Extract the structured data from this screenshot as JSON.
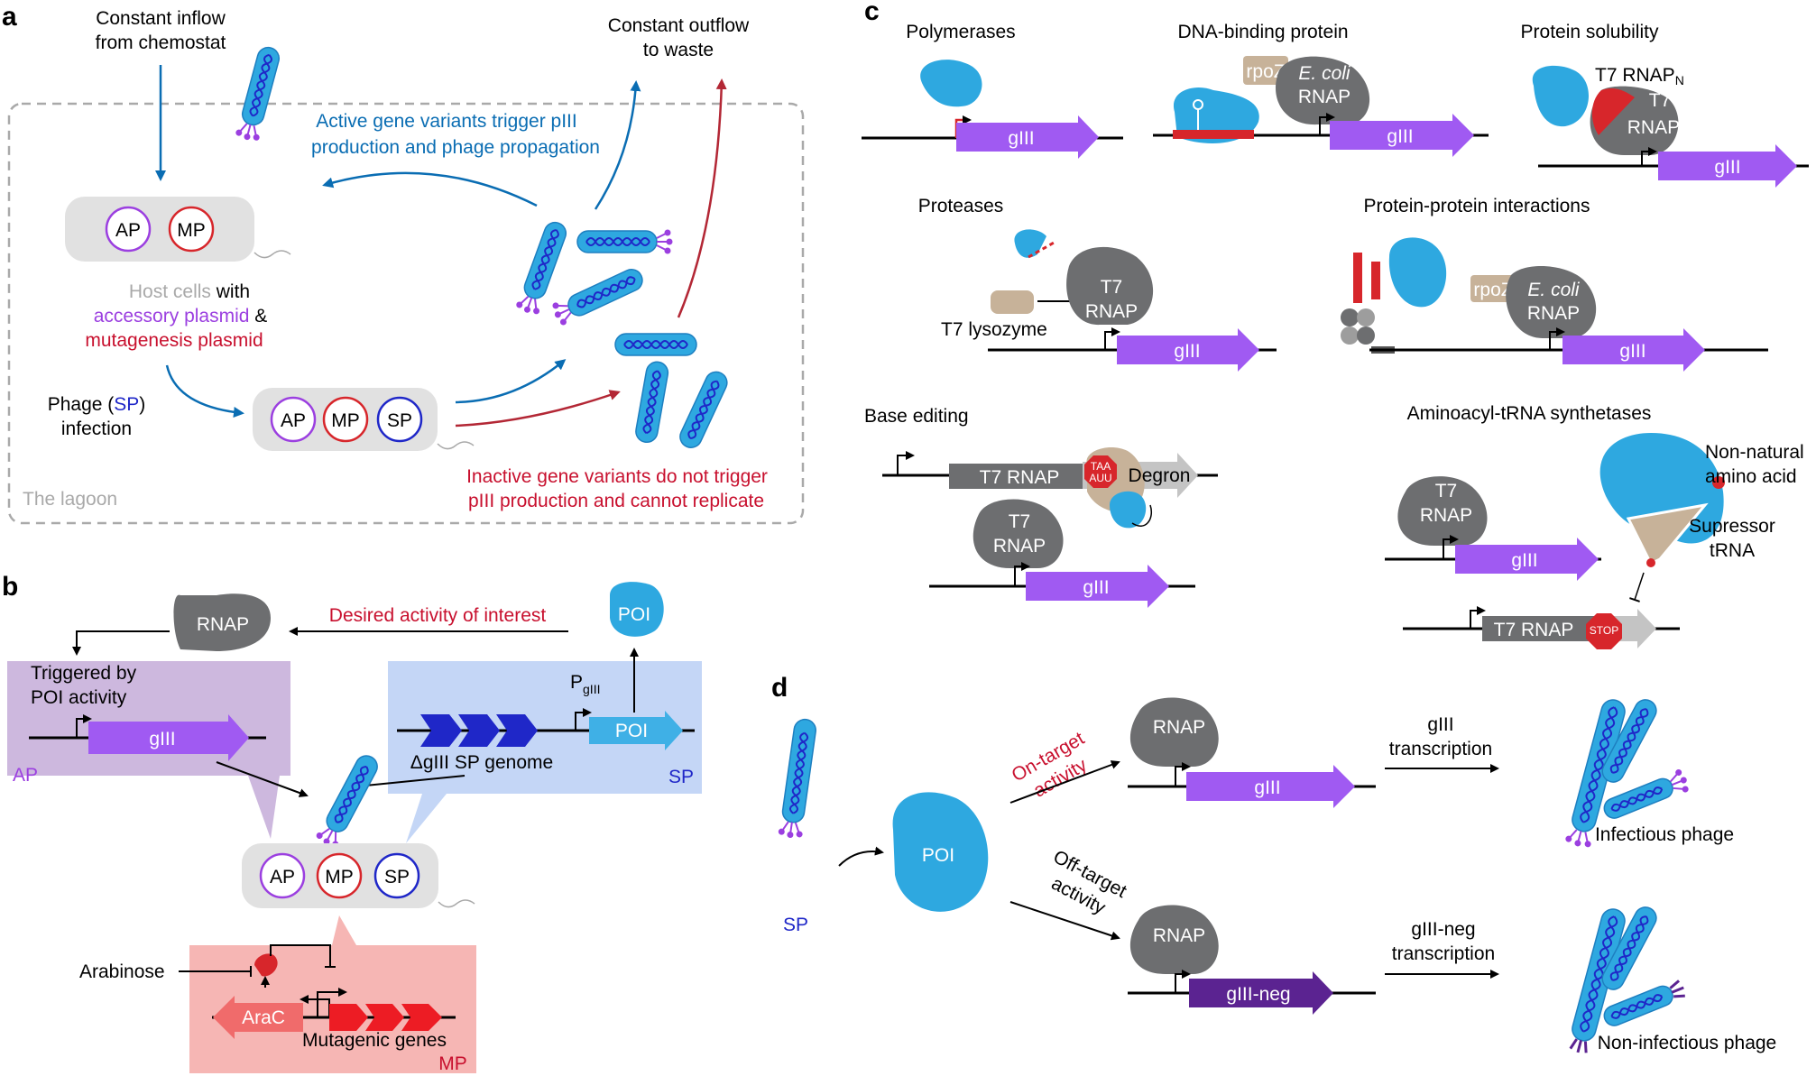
{
  "panels": {
    "a": "a",
    "b": "b",
    "c": "c",
    "d": "d"
  },
  "panel_a": {
    "inflow": [
      "Constant inflow",
      "from chemostat"
    ],
    "outflow": [
      "Constant outflow",
      "to waste"
    ],
    "active": [
      "Active gene variants trigger pIII",
      "production and phage propagation"
    ],
    "inactive": [
      "Inactive gene variants do not trigger",
      "pIII production and cannot replicate"
    ],
    "host_prefix": "Host cells",
    "host_with": " with",
    "accessory": "accessory plasmid",
    "amp": " &",
    "mutagenesis": "mutagenesis plasmid",
    "phage_infection": [
      "Phage (",
      "SP",
      ")",
      "infection"
    ],
    "lagoon": "The lagoon",
    "ap": "AP",
    "mp": "MP",
    "sp": "SP"
  },
  "panel_b": {
    "rnap": "RNAP",
    "desired": "Desired activity of interest",
    "poi": "POI",
    "triggered": [
      "Triggered by",
      "POI activity"
    ],
    "giii": "gIII",
    "ap_label": "AP",
    "p_letter": "P",
    "p_sub": "gIII",
    "poi_gene": "POI",
    "sp_genome": "ΔgIII SP genome",
    "sp_label": "SP",
    "ap": "AP",
    "mp": "MP",
    "sp": "SP",
    "arabinose": "Arabinose",
    "arac": "AraC",
    "mutagenic": "Mutagenic genes",
    "mp_label": "MP"
  },
  "panel_c": {
    "polymerases": "Polymerases",
    "dna_binding": "DNA-binding protein",
    "solubility": "Protein solubility",
    "proteases": "Proteases",
    "ppi": "Protein-protein interactions",
    "base_editing": "Base editing",
    "aars": "Aminoacyl-tRNA synthetases",
    "giii": "gIII",
    "rpoz": "rpoZ",
    "ecoli": "E. coli",
    "rnap": "RNAP",
    "t7": "T7",
    "t7_rnap": "T7 RNAP",
    "t7_rnap_n_main": "T7 RNAP",
    "t7_rnap_n_sub": "N",
    "rnap_c_main": "RNAP",
    "rnap_c_sub": "C",
    "t7_lysozyme": "T7 lysozyme",
    "degron": "Degron",
    "taa": "TAA",
    "auu": "AUU",
    "stop": "STOP",
    "non_natural": [
      "Non-natural",
      "amino acid"
    ],
    "supressor": [
      "Supressor",
      "tRNA"
    ]
  },
  "panel_d": {
    "sp": "SP",
    "poi": "POI",
    "on_target": [
      "On-target",
      "activity"
    ],
    "off_target": [
      "Off-target",
      "activity"
    ],
    "rnap": "RNAP",
    "giii": "gIII",
    "giii_neg": "gIII-neg",
    "giii_tx": [
      "gIII",
      "transcription"
    ],
    "giii_neg_tx": [
      "gIII-neg",
      "transcription"
    ],
    "infectious": "Infectious phage",
    "non_infectious": "Non-infectious phage"
  },
  "colors": {
    "protein_blue": "#2ea8e0",
    "giii_purple": "#a05af2",
    "giii_neg_purple": "#5b2391",
    "rnap_grey": "#6d6e70",
    "tan": "#c7b299",
    "red_accent": "#d7262b",
    "text_blue": "#0a6db3",
    "text_red": "#c8102e"
  }
}
